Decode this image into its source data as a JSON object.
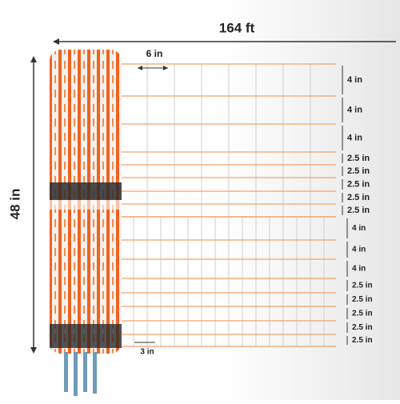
{
  "dimensions": {
    "length": "164 ft",
    "height": "48 in",
    "top_mesh_width": "6 in",
    "bottom_mesh_width": "3 in"
  },
  "top_spacings": [
    "4 in",
    "4 in",
    "4 in",
    "2.5 in",
    "2.5 in",
    "2.5 in",
    "2.5 in",
    "2.5 in"
  ],
  "bottom_spacings": [
    "4 in",
    "4 in",
    "4 in",
    "2.5 in",
    "2.5 in",
    "2.5 in",
    "2.5 in",
    "2.5 in"
  ]
}
